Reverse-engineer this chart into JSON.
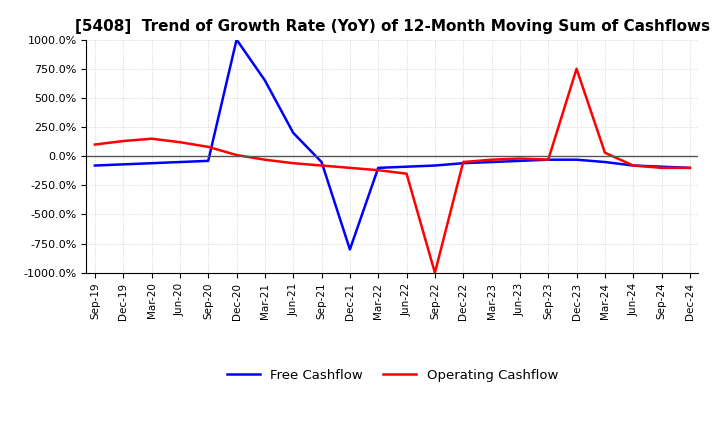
{
  "title": "[5408]  Trend of Growth Rate (YoY) of 12-Month Moving Sum of Cashflows",
  "title_fontsize": 11,
  "ylim": [
    -1000,
    1000
  ],
  "yticks": [
    -1000,
    -750,
    -500,
    -250,
    0,
    250,
    500,
    750,
    1000
  ],
  "ytick_labels": [
    "-1000.0%",
    "-750.0%",
    "-500.0%",
    "-250.0%",
    "0.0%",
    "250.0%",
    "500.0%",
    "750.0%",
    "1000.0%"
  ],
  "background_color": "#ffffff",
  "plot_bg_color": "#ffffff",
  "grid_color": "#cccccc",
  "legend_labels": [
    "Operating Cashflow",
    "Free Cashflow"
  ],
  "legend_colors": [
    "#ff0000",
    "#0000ff"
  ],
  "x_dates": [
    "Sep-19",
    "Dec-19",
    "Mar-20",
    "Jun-20",
    "Sep-20",
    "Dec-20",
    "Mar-21",
    "Jun-21",
    "Sep-21",
    "Dec-21",
    "Mar-22",
    "Jun-22",
    "Sep-22",
    "Dec-22",
    "Mar-23",
    "Jun-23",
    "Sep-23",
    "Dec-23",
    "Mar-24",
    "Jun-24",
    "Sep-24",
    "Dec-24"
  ],
  "operating_cf": [
    100,
    130,
    150,
    120,
    80,
    10,
    -30,
    -60,
    -80,
    -100,
    -120,
    -150,
    -1000,
    -50,
    -30,
    -20,
    -30,
    750,
    30,
    -80,
    -100,
    -100
  ],
  "free_cf": [
    -80,
    -70,
    -60,
    -50,
    -40,
    1000,
    650,
    200,
    -50,
    -800,
    -100,
    -90,
    -80,
    -60,
    -50,
    -40,
    -30,
    -30,
    -50,
    -80,
    -90,
    -100
  ]
}
